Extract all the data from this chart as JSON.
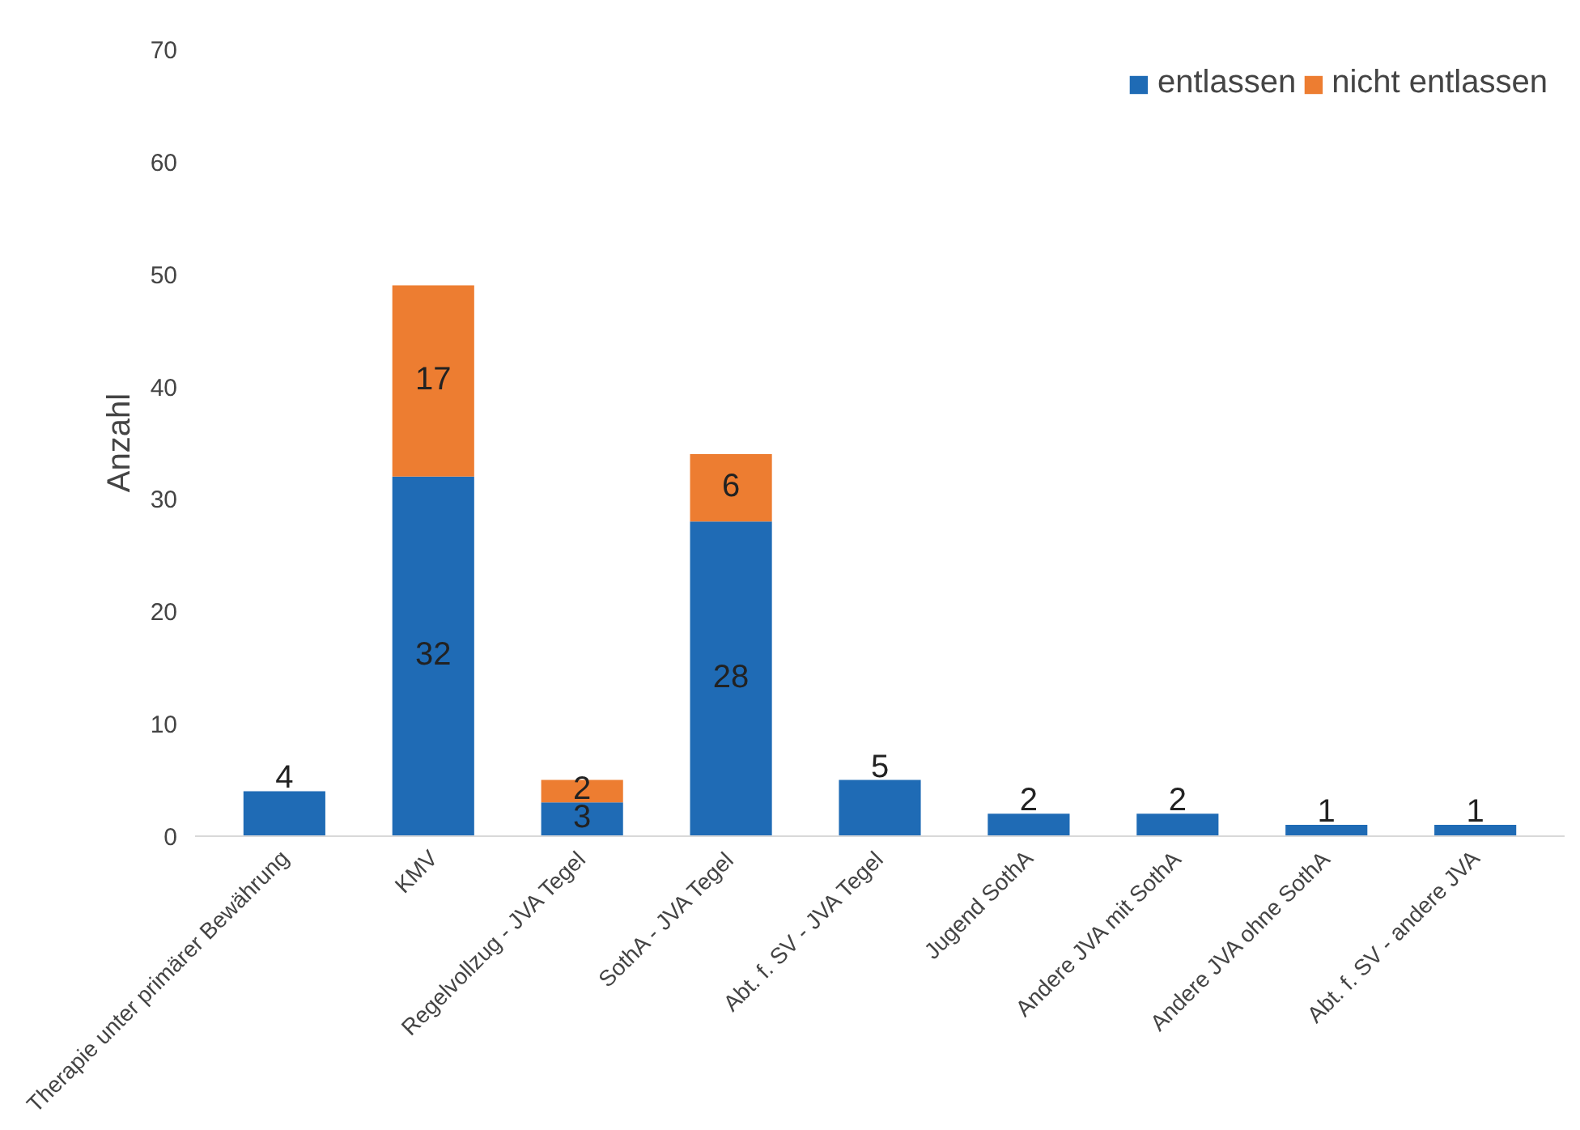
{
  "chart_data": {
    "type": "bar",
    "stacked": true,
    "ylabel": "Anzahl",
    "categories": [
      "Therapie unter primärer Bewährung",
      "KMV",
      "Regelvollzug - JVA Tegel",
      "SothA - JVA Tegel",
      "Abt. f. SV - JVA Tegel",
      "Jugend SothA",
      "Andere JVA mit SothA",
      "Andere JVA ohne SothA",
      "Abt. f. SV - andere JVA"
    ],
    "series": [
      {
        "name": "entlassen",
        "color": "#1f6bb5",
        "values": [
          4,
          32,
          3,
          28,
          5,
          2,
          2,
          1,
          1
        ]
      },
      {
        "name": "nicht entlassen",
        "color": "#ed7d31",
        "values": [
          null,
          17,
          2,
          6,
          null,
          null,
          null,
          null,
          null
        ]
      }
    ],
    "ylim": [
      0,
      70
    ],
    "yticks": [
      0,
      10,
      20,
      30,
      40,
      50,
      60,
      70
    ],
    "grid": false,
    "legend": "top right",
    "data_labels": true
  }
}
